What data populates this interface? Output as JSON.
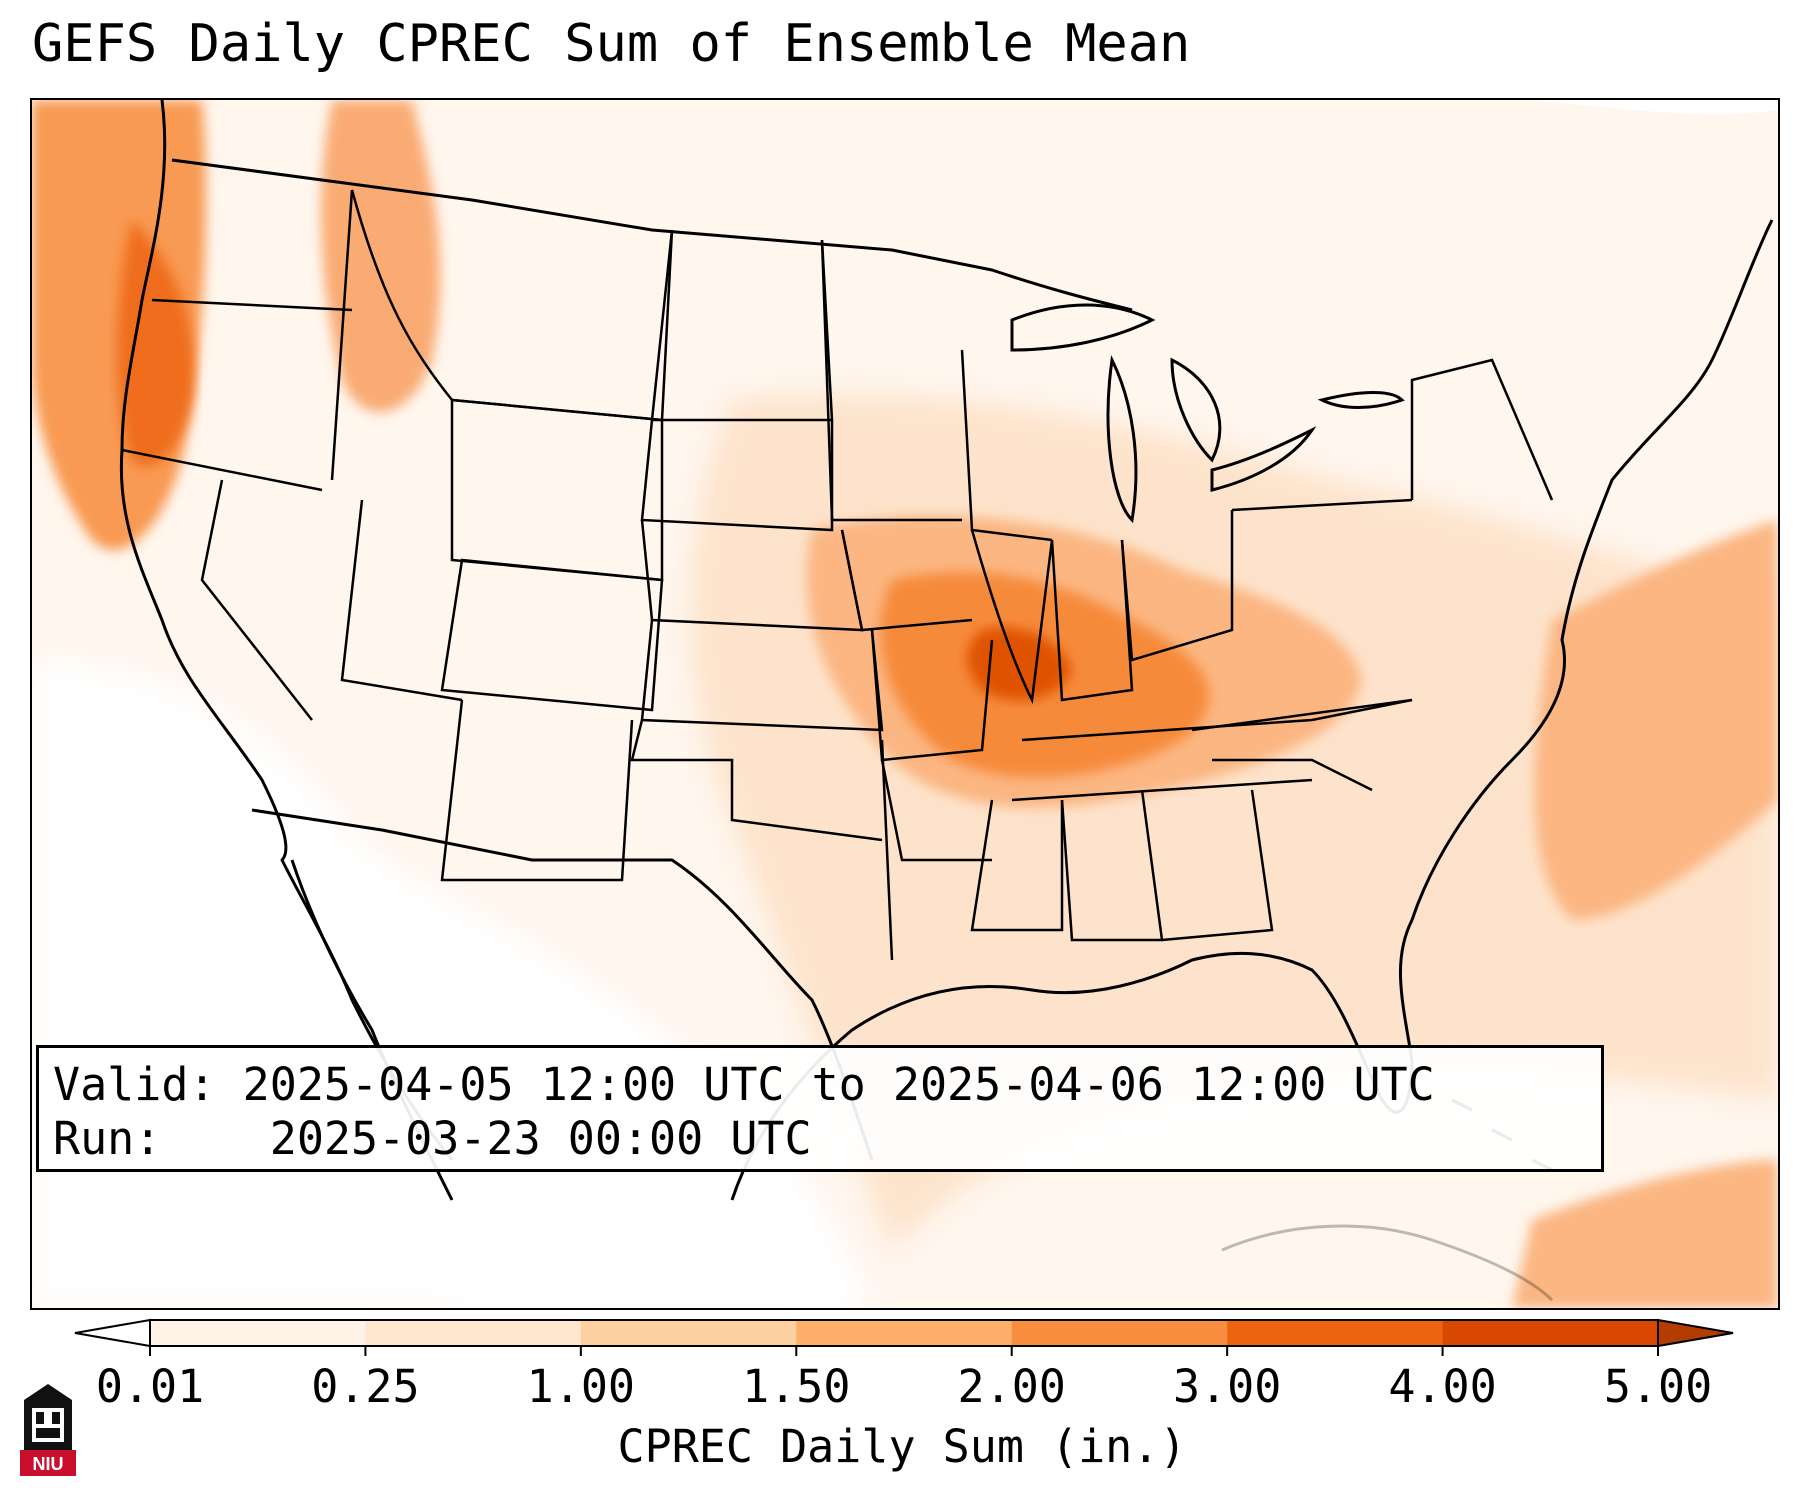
{
  "title": "GEFS Daily CPREC Sum of Ensemble Mean",
  "info": {
    "valid_label": "Valid:",
    "valid_value": "2025-04-05 12:00 UTC to 2025-04-06 12:00 UTC",
    "run_label": "Run:",
    "run_value": "2025-03-23 00:00 UTC"
  },
  "colorbar": {
    "label": "CPREC Daily Sum (in.)",
    "ticks": [
      "0.01",
      "0.25",
      "1.00",
      "1.50",
      "2.00",
      "3.00",
      "4.00",
      "5.00"
    ],
    "colors": [
      "#fff3e8",
      "#fee6cf",
      "#fdd0a2",
      "#fdae6b",
      "#f88d3f",
      "#ee6511",
      "#d94801"
    ],
    "extend": "both"
  },
  "logo": {
    "text": "NIU",
    "accent": "#c8102e"
  }
}
